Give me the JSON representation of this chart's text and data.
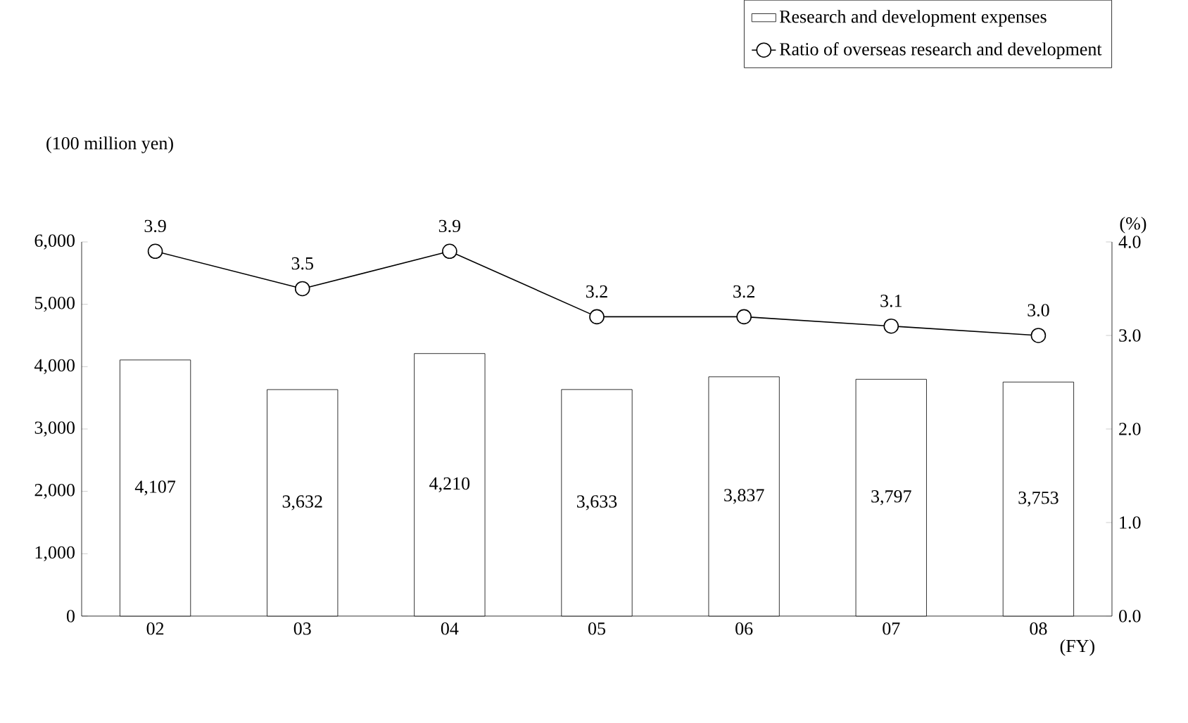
{
  "chart_data": {
    "type": "bar",
    "categories": [
      "02",
      "03",
      "04",
      "05",
      "06",
      "07",
      "08"
    ],
    "series": [
      {
        "name": "Research and development expenses",
        "color": "#ffffff",
        "values": [
          4107,
          3632,
          4210,
          3633,
          3837,
          3797,
          3753
        ],
        "value_labels": [
          "4,107",
          "3,632",
          "4,210",
          "3,633",
          "3,837",
          "3,797",
          "3,753"
        ]
      },
      {
        "name": "Ratio of overseas research and development",
        "type": "line",
        "axis": "y2",
        "marker": "circle",
        "color": "#000000",
        "values": [
          3.9,
          3.5,
          3.9,
          3.2,
          3.2,
          3.1,
          3.0
        ],
        "value_labels": [
          "3.9",
          "3.5",
          "3.9",
          "3.2",
          "3.2",
          "3.1",
          "3.0"
        ]
      }
    ],
    "ylabel": "(100 million yen)",
    "y2label": "(%)",
    "xlabel": "(FY)",
    "ylim": [
      0,
      6000
    ],
    "yticks": [
      0,
      {
        "value": 1000,
        "label": "1,000"
      },
      {
        "value": 2000,
        "label": "2,000"
      },
      {
        "value": 3000,
        "label": "3,000"
      },
      {
        "value": 4000,
        "label": "4,000"
      },
      {
        "value": 5000,
        "label": "5,000"
      },
      {
        "value": 6000,
        "label": "6,000"
      }
    ],
    "y2lim": [
      0,
      4
    ],
    "y2ticks": [
      {
        "value": 0,
        "label": "0.0"
      },
      {
        "value": 1,
        "label": "1.0"
      },
      {
        "value": 2,
        "label": "2.0"
      },
      {
        "value": 3,
        "label": "3.0"
      },
      {
        "value": 4,
        "label": "4.0"
      }
    ],
    "legend": "top right"
  }
}
